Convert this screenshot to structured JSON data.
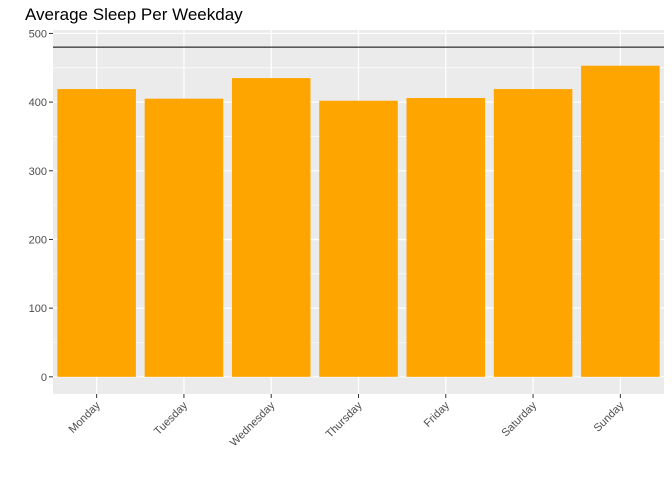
{
  "chart_data": {
    "type": "bar",
    "title": "Average Sleep Per Weekday",
    "xlabel": "",
    "ylabel": "",
    "categories": [
      "Monday",
      "Tuesday",
      "Wednesday",
      "Thursday",
      "Friday",
      "Saturday",
      "Sunday"
    ],
    "values": [
      419,
      405,
      435,
      402,
      406,
      419,
      453
    ],
    "reference_line": 480,
    "ylim": [
      -25,
      505
    ],
    "yticks": [
      0,
      100,
      200,
      300,
      400,
      500
    ],
    "grid": true,
    "legend": "none",
    "colors": {
      "bar": "#FFA500",
      "panel_background": "#EBEBEB",
      "grid": "#FFFFFF",
      "reference_line": "#000000"
    }
  }
}
